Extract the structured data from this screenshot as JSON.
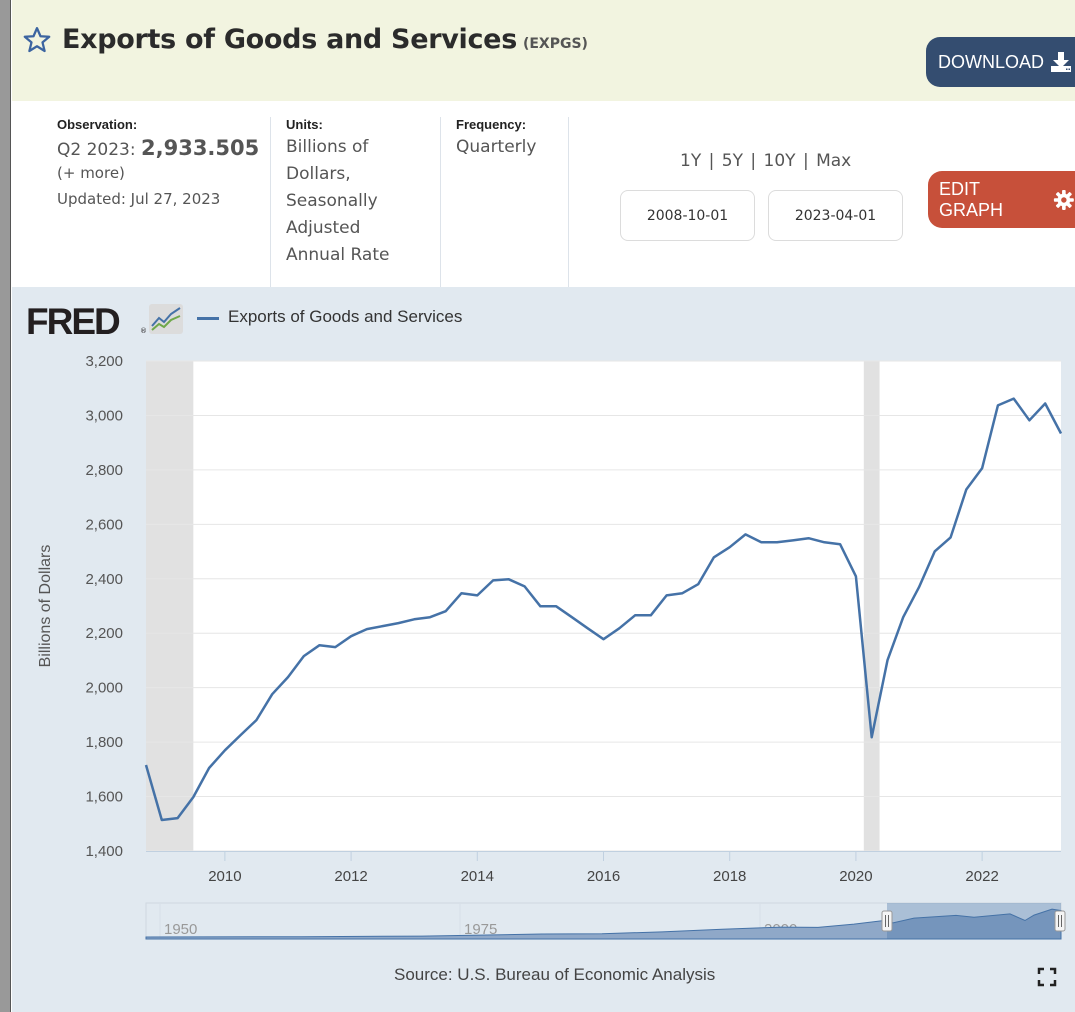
{
  "header": {
    "title": "Exports of Goods and Services",
    "series_id": "(EXPGS)",
    "download_label": "DOWNLOAD",
    "star_icon": "star-outline-icon",
    "download_icon": "download-icon"
  },
  "meta": {
    "observation_label": "Observation:",
    "observation_period": "Q2 2023:",
    "observation_value": "2,933.505",
    "more_link": "(+ more)",
    "updated": "Updated: Jul 27, 2023",
    "units_label": "Units:",
    "units_lines": [
      "Billions of",
      "Dollars,",
      "Seasonally",
      "Adjusted",
      "Annual Rate"
    ],
    "frequency_label": "Frequency:",
    "frequency_value": "Quarterly",
    "range_links": [
      "1Y",
      "5Y",
      "10Y",
      "Max"
    ],
    "range_separator": "|",
    "start_date": "2008-10-01",
    "end_date": "2023-04-01",
    "edit_graph_label": "EDIT GRAPH",
    "edit_icon": "gear-icon"
  },
  "colors": {
    "series": "#4572a7",
    "recession": "#e1e1e1",
    "download_btn": "#344d70",
    "edit_btn": "#c7503a",
    "panel": "#e1e9f0"
  },
  "chart_data": {
    "type": "line",
    "title": "",
    "logo_text": "FRED",
    "legend": [
      "Exports of Goods and Services"
    ],
    "legend_placement": "top-left",
    "xlabel": "",
    "ylabel": "Billions of Dollars",
    "xlim": [
      2008.75,
      2023.25
    ],
    "ylim": [
      1400,
      3200
    ],
    "grid": true,
    "y_ticks": [
      1400,
      1600,
      1800,
      2000,
      2200,
      2400,
      2600,
      2800,
      3000,
      3200
    ],
    "y_tick_labels": [
      "1,400",
      "1,600",
      "1,800",
      "2,000",
      "2,200",
      "2,400",
      "2,600",
      "2,800",
      "3,000",
      "3,200"
    ],
    "x_ticks": [
      2010,
      2012,
      2014,
      2016,
      2018,
      2020,
      2022
    ],
    "x_tick_labels": [
      "2010",
      "2012",
      "2014",
      "2016",
      "2018",
      "2020",
      "2022"
    ],
    "recessions": [
      [
        2008.75,
        2009.5
      ],
      [
        2020.125,
        2020.375
      ]
    ],
    "series": [
      {
        "name": "Exports of Goods and Services",
        "x": [
          2008.75,
          2009.0,
          2009.25,
          2009.5,
          2009.75,
          2010.0,
          2010.25,
          2010.5,
          2010.75,
          2011.0,
          2011.25,
          2011.5,
          2011.75,
          2012.0,
          2012.25,
          2012.5,
          2012.75,
          2013.0,
          2013.25,
          2013.5,
          2013.75,
          2014.0,
          2014.25,
          2014.5,
          2014.75,
          2015.0,
          2015.25,
          2015.5,
          2015.75,
          2016.0,
          2016.25,
          2016.5,
          2016.75,
          2017.0,
          2017.25,
          2017.5,
          2017.75,
          2018.0,
          2018.25,
          2018.5,
          2018.75,
          2019.0,
          2019.25,
          2019.5,
          2019.75,
          2020.0,
          2020.25,
          2020.5,
          2020.75,
          2021.0,
          2021.25,
          2021.5,
          2021.75,
          2022.0,
          2022.25,
          2022.5,
          2022.75,
          2023.0,
          2023.25
        ],
        "values": [
          1716,
          1514,
          1521,
          1598,
          1705,
          1770,
          1826,
          1881,
          1976,
          2039,
          2116,
          2156,
          2149,
          2189,
          2215,
          2226,
          2237,
          2251,
          2259,
          2281,
          2347,
          2339,
          2394,
          2398,
          2372,
          2299,
          2299,
          2259,
          2218,
          2178,
          2218,
          2266,
          2266,
          2339,
          2347,
          2380,
          2479,
          2516,
          2563,
          2534,
          2534,
          2541,
          2549,
          2534,
          2527,
          2409,
          1818,
          2101,
          2259,
          2369,
          2501,
          2552,
          2728,
          2806,
          3037,
          3062,
          2982,
          3044,
          2933.505
        ]
      }
    ],
    "navigator": {
      "labels": [
        "1950",
        "1975",
        "2000"
      ],
      "label_years": [
        1950,
        1975,
        2000
      ],
      "range_years": [
        1947,
        2023.25
      ],
      "selected": [
        2008.75,
        2023.25
      ]
    },
    "source": "Source: U.S. Bureau of Economic Analysis",
    "fullscreen_icon": "fullscreen-icon"
  }
}
